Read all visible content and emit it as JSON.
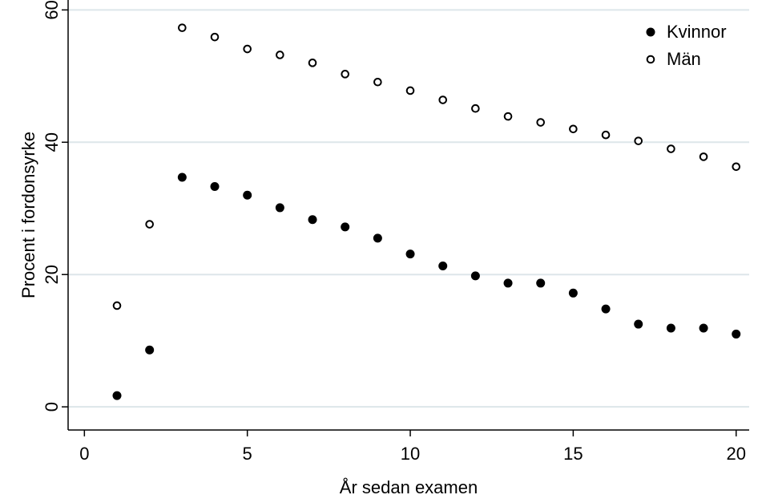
{
  "chart_data": {
    "type": "scatter",
    "xlabel": "År sedan examen",
    "ylabel": "Procent i fordonsyrke",
    "xlim": [
      -0.5,
      20.4
    ],
    "ylim": [
      -3.5,
      61.5
    ],
    "xticks": [
      0,
      5,
      10,
      15,
      20
    ],
    "yticks": [
      0,
      20,
      40,
      60
    ],
    "grid": "horizontal",
    "legend_position": "top-right",
    "series": [
      {
        "name": "Kvinnor",
        "marker": "filled-circle",
        "color": "#000000",
        "x": [
          1,
          2,
          3,
          4,
          5,
          6,
          7,
          8,
          9,
          10,
          11,
          12,
          13,
          14,
          15,
          16,
          17,
          18,
          19,
          20
        ],
        "y": [
          1.7,
          8.6,
          34.7,
          33.3,
          32.0,
          30.1,
          28.3,
          27.2,
          25.5,
          23.1,
          21.3,
          19.8,
          18.7,
          18.7,
          17.2,
          14.8,
          12.5,
          11.9,
          11.9,
          11.0
        ]
      },
      {
        "name": "Män",
        "marker": "hollow-circle",
        "color": "#000000",
        "x": [
          1,
          2,
          3,
          4,
          5,
          6,
          7,
          8,
          9,
          10,
          11,
          12,
          13,
          14,
          15,
          16,
          17,
          18,
          19,
          20
        ],
        "y": [
          15.3,
          27.6,
          57.3,
          55.9,
          54.1,
          53.2,
          52.0,
          50.3,
          49.1,
          47.8,
          46.4,
          45.1,
          43.9,
          43.0,
          42.0,
          41.1,
          40.2,
          39.0,
          37.8,
          36.3
        ]
      }
    ]
  },
  "colors": {
    "gridline": "#dde6ea",
    "axis": "#000000",
    "background": "#ffffff"
  }
}
